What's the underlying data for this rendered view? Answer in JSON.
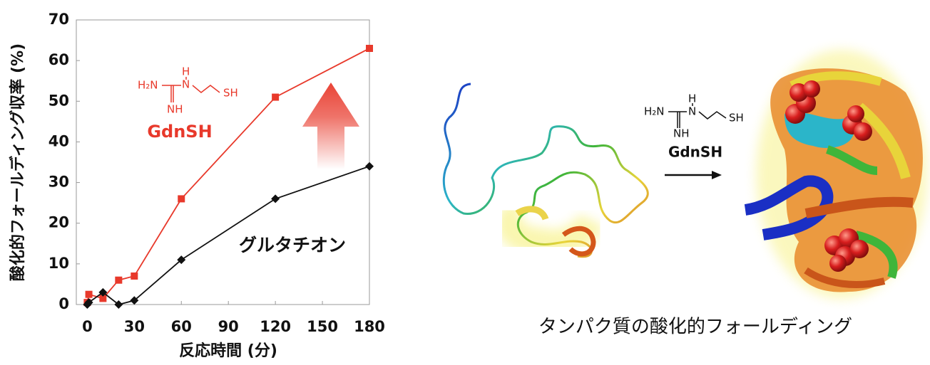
{
  "chart_data": {
    "type": "line",
    "x_label": "反応時間 (分)",
    "y_label": "酸化的フォールディング収率 (%)",
    "x": [
      0,
      1,
      10,
      20,
      30,
      60,
      120,
      180
    ],
    "series": [
      {
        "name": "GdnSH",
        "color": "#e8392b",
        "marker": "square",
        "values": [
          0.5,
          2.5,
          1.5,
          6,
          7,
          26,
          51,
          63
        ]
      },
      {
        "name": "グルタチオン",
        "color": "#111111",
        "marker": "diamond",
        "values": [
          0,
          0.5,
          3,
          0,
          1,
          11,
          26,
          34
        ]
      }
    ],
    "xlim": [
      -7,
      180
    ],
    "xticks": [
      0,
      30,
      60,
      90,
      120,
      150,
      180
    ],
    "ylim": [
      0,
      70
    ],
    "yticks": [
      0,
      10,
      20,
      30,
      40,
      50,
      60,
      70
    ],
    "structure_labels": [
      "H₂N",
      "H",
      "N",
      "NH",
      "SH"
    ]
  },
  "illustration": {
    "structure_labels": [
      "H₂N",
      "H",
      "N",
      "NH",
      "SH"
    ],
    "reagent": "GdnSH",
    "caption": "タンパク質の酸化的フォールディング"
  }
}
